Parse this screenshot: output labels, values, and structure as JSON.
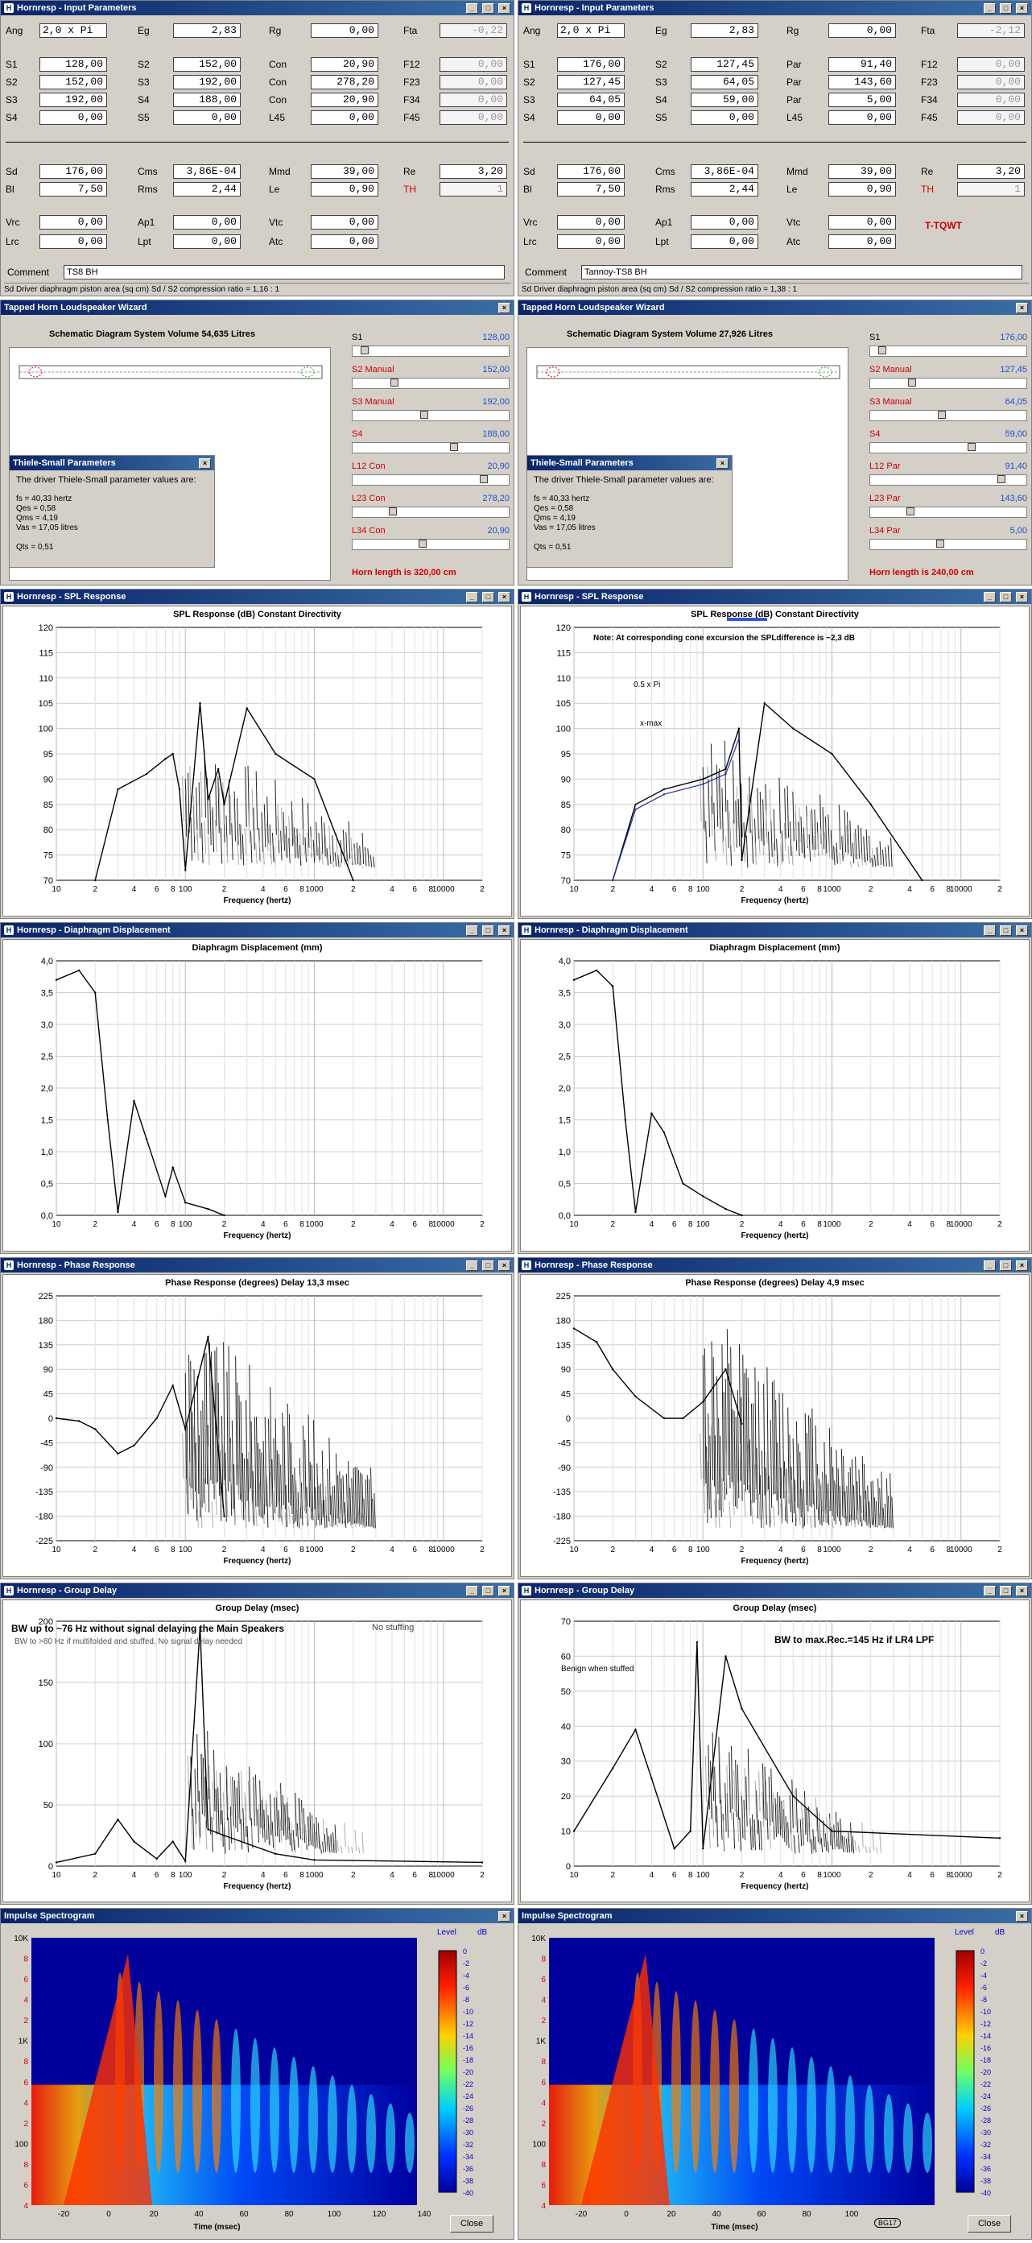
{
  "panels": [
    {
      "input": {
        "title": "Hornresp - Input Parameters",
        "ang": "2,0 x Pi",
        "eg": "2,83",
        "rg": "0,00",
        "fta": "-0,22",
        "s": [
          {
            "lab": "S1",
            "val": "128,00",
            "lab2": "S2",
            "val2": "152,00",
            "lab3": "Con",
            "val3": "20,90",
            "lab4": "F12",
            "val4": "0,00"
          },
          {
            "lab": "S2",
            "val": "152,00",
            "lab2": "S3",
            "val2": "192,00",
            "lab3": "Con",
            "val3": "278,20",
            "lab4": "F23",
            "val4": "0,00"
          },
          {
            "lab": "S3",
            "val": "192,00",
            "lab2": "S4",
            "val2": "188,00",
            "lab3": "Con",
            "val3": "20,90",
            "lab4": "F34",
            "val4": "0,00"
          },
          {
            "lab": "S4",
            "val": "0,00",
            "lab2": "S5",
            "val2": "0,00",
            "lab3": "L45",
            "val3": "0,00",
            "lab4": "F45",
            "val4": "0,00"
          }
        ],
        "sd": "176,00",
        "cms": "3,86E-04",
        "mmd": "39,00",
        "re": "3,20",
        "bl": "7,50",
        "rms": "2,44",
        "le": "0,90",
        "th": "1",
        "vrc": "0,00",
        "ap1": "0,00",
        "vtc": "0,00",
        "lrc": "0,00",
        "lpt": "0,00",
        "atc": "0,00",
        "tag": "",
        "comment": "TS8 BH",
        "status": "Sd  Driver diaphragm piston area  (sq cm)   Sd / S2 compression ratio = 1,16 : 1"
      },
      "wizard": {
        "title": "Tapped Horn Loudspeaker Wizard",
        "schematic": "Schematic Diagram   System Volume 54,635 Litres",
        "sliders": [
          {
            "lab": "S1",
            "val": "128,00",
            "red": false
          },
          {
            "lab": "S2  Manual",
            "val": "152,00",
            "red": true
          },
          {
            "lab": "S3  Manual",
            "val": "192,00",
            "red": true
          },
          {
            "lab": "S4",
            "val": "188,00",
            "red": true
          },
          {
            "lab": "L12  Con",
            "val": "20,90",
            "red": true
          },
          {
            "lab": "L23  Con",
            "val": "278,20",
            "red": true
          },
          {
            "lab": "L34  Con",
            "val": "20,90",
            "red": true
          }
        ],
        "horn_length": "Horn length is 320,00 cm",
        "ts_title": "Thiele-Small Parameters",
        "ts_intro": "The driver Thiele-Small parameter values are:",
        "ts_lines": [
          "fs = 40,33 hertz",
          "Qes = 0,58",
          "Qms = 4,19",
          "Vas = 17,05 litres",
          "",
          "Qts = 0,51"
        ]
      },
      "spl": {
        "title": "Hornresp - SPL Response",
        "chart": "SPL Response  (dB)    Constant Directivity",
        "note": "",
        "ann": []
      },
      "disp": {
        "title": "Hornresp - Diaphragm Displacement",
        "chart": "Diaphragm Displacement  (mm)"
      },
      "phase": {
        "title": "Hornresp - Phase Response",
        "chart": "Phase Response  (degrees)    Delay 13,3 msec"
      },
      "gd": {
        "title": "Hornresp - Group Delay",
        "chart": "Group Delay  (msec)",
        "note1": "BW up to ~76 Hz without signal delaying the Main Speakers",
        "note1b": "No stuffing",
        "note2": "BW to >80 Hz if multifolded and stuffed, No signal delay needed",
        "note3": ""
      },
      "spec": {
        "title": "Impulse Spectrogram",
        "level": "Level",
        "db": "dB",
        "xlabel": "Time  (msec)",
        "close": "Close",
        "badge": ""
      }
    },
    {
      "input": {
        "title": "Hornresp - Input Parameters",
        "ang": "2,0 x Pi",
        "eg": "2,83",
        "rg": "0,00",
        "fta": "-2,12",
        "s": [
          {
            "lab": "S1",
            "val": "176,00",
            "lab2": "S2",
            "val2": "127,45",
            "lab3": "Par",
            "val3": "91,40",
            "lab4": "F12",
            "val4": "0,00"
          },
          {
            "lab": "S2",
            "val": "127,45",
            "lab2": "S3",
            "val2": "64,05",
            "lab3": "Par",
            "val3": "143,60",
            "lab4": "F23",
            "val4": "0,00"
          },
          {
            "lab": "S3",
            "val": "64,05",
            "lab2": "S4",
            "val2": "59,00",
            "lab3": "Par",
            "val3": "5,00",
            "lab4": "F34",
            "val4": "0,00"
          },
          {
            "lab": "S4",
            "val": "0,00",
            "lab2": "S5",
            "val2": "0,00",
            "lab3": "L45",
            "val3": "0,00",
            "lab4": "F45",
            "val4": "0,00"
          }
        ],
        "sd": "176,00",
        "cms": "3,86E-04",
        "mmd": "39,00",
        "re": "3,20",
        "bl": "7,50",
        "rms": "2,44",
        "le": "0,90",
        "th": "1",
        "vrc": "0,00",
        "ap1": "0,00",
        "vtc": "0,00",
        "lrc": "0,00",
        "lpt": "0,00",
        "atc": "0,00",
        "tag": "T-TQWT",
        "comment": "Tannoy-TS8 BH",
        "status": "Sd  Driver diaphragm piston area  (sq cm)   Sd / S2 compression ratio = 1,38 : 1"
      },
      "wizard": {
        "title": "Tapped Horn Loudspeaker Wizard",
        "schematic": "Schematic Diagram   System Volume 27,926 Litres",
        "sliders": [
          {
            "lab": "S1",
            "val": "176,00",
            "red": false
          },
          {
            "lab": "S2  Manual",
            "val": "127,45",
            "red": true
          },
          {
            "lab": "S3  Manual",
            "val": "64,05",
            "red": true
          },
          {
            "lab": "S4",
            "val": "59,00",
            "red": true
          },
          {
            "lab": "L12  Par",
            "val": "91,40",
            "red": true
          },
          {
            "lab": "L23  Par",
            "val": "143,60",
            "red": true
          },
          {
            "lab": "L34  Par",
            "val": "5,00",
            "red": true
          }
        ],
        "horn_length": "Horn length is 240,00 cm",
        "ts_title": "Thiele-Small Parameters",
        "ts_intro": "The driver Thiele-Small parameter values are:",
        "ts_lines": [
          "fs = 40,33 hertz",
          "Qes = 0,58",
          "Qms = 4,19",
          "Vas = 17,05 litres",
          "",
          "Qts = 0,51"
        ]
      },
      "spl": {
        "title": "Hornresp - SPL Response",
        "chart": "SPL Response  (dB)    Constant Directivity",
        "note": "Note: At corresponding cone excursion the SPLdifference is ~2,3 dB",
        "ann": [
          "0.5 x Pi",
          "x-max"
        ]
      },
      "disp": {
        "title": "Hornresp - Diaphragm Displacement",
        "chart": "Diaphragm Displacement  (mm)"
      },
      "phase": {
        "title": "Hornresp - Phase Response",
        "chart": "Phase Response  (degrees)    Delay 4,9 msec"
      },
      "gd": {
        "title": "Hornresp - Group Delay",
        "chart": "Group Delay  (msec)",
        "note1": "BW to max.Rec.=145 Hz if LR4 LPF",
        "note1b": "",
        "note2": "",
        "note3": "Benign when stuffed"
      },
      "spec": {
        "title": "Impulse Spectrogram",
        "level": "Level",
        "db": "dB",
        "xlabel": "Time  (msec)",
        "close": "Close",
        "badge": "BG17"
      }
    }
  ],
  "freq_ticks": [
    "10",
    "2",
    "4",
    "6",
    "8",
    "100",
    "2",
    "4",
    "6",
    "8",
    "1000",
    "2",
    "4",
    "6",
    "8",
    "10000",
    "2"
  ],
  "freq_label": "Frequency  (hertz)",
  "spl_y": [
    "120",
    "115",
    "110",
    "105",
    "100",
    "95",
    "90",
    "85",
    "80",
    "75",
    "70"
  ],
  "disp_y": [
    "4,0",
    "3,5",
    "3,0",
    "2,5",
    "2,0",
    "1,5",
    "1,0",
    "0,5",
    "0,0"
  ],
  "phase_y": [
    "225",
    "180",
    "135",
    "90",
    "45",
    "0",
    "-45",
    "-90",
    "-135",
    "-180",
    "-225"
  ],
  "gd_y_left": [
    "200",
    "150",
    "100",
    "50",
    "0"
  ],
  "gd_y_right": [
    "70",
    "60",
    "50",
    "40",
    "30",
    "20",
    "10",
    "0"
  ],
  "spec_y": [
    "10K",
    "8",
    "6",
    "4",
    "2",
    "1K",
    "8",
    "6",
    "4",
    "2",
    "100",
    "8",
    "6",
    "4"
  ],
  "spec_x_left": [
    "-20",
    "0",
    "20",
    "40",
    "60",
    "80",
    "100",
    "120",
    "140"
  ],
  "spec_x_right": [
    "-20",
    "0",
    "20",
    "40",
    "60",
    "80",
    "100"
  ],
  "level_ticks": [
    "0",
    "-2",
    "-4",
    "-6",
    "-8",
    "-10",
    "-12",
    "-14",
    "-16",
    "-18",
    "-20",
    "-22",
    "-24",
    "-26",
    "-28",
    "-30",
    "-32",
    "-34",
    "-36",
    "-38",
    "-40"
  ],
  "chart_data": [
    {
      "type": "line",
      "title": "SPL Response  (dB)    Constant Directivity",
      "xlabel": "Frequency  (hertz)",
      "ylabel": "",
      "ylim": [
        70,
        120
      ],
      "xlim": [
        10,
        20000
      ],
      "xscale": "log",
      "grid": true,
      "series": [
        {
          "x": [
            20,
            30,
            50,
            70,
            80,
            90,
            100,
            130,
            150,
            180,
            200,
            300,
            500,
            1000,
            2000
          ],
          "y": [
            70,
            88,
            91,
            94,
            95,
            88,
            72,
            105,
            86,
            92,
            85,
            104,
            95,
            90,
            70
          ]
        }
      ]
    },
    {
      "type": "line",
      "title": "SPL Response  (dB)    Constant Directivity",
      "xlabel": "Frequency  (hertz)",
      "ylabel": "",
      "ylim": [
        70,
        120
      ],
      "xlim": [
        10,
        20000
      ],
      "xscale": "log",
      "grid": true,
      "series": [
        {
          "x": [
            20,
            30,
            50,
            100,
            150,
            190,
            200,
            300,
            500,
            1000,
            2000,
            5000
          ],
          "y": [
            70,
            85,
            88,
            90,
            92,
            100,
            74,
            105,
            100,
            95,
            85,
            70
          ]
        }
      ]
    },
    {
      "type": "line",
      "title": "Diaphragm Displacement  (mm)",
      "xlabel": "Frequency  (hertz)",
      "ylim": [
        0,
        4
      ],
      "xlim": [
        10,
        20000
      ],
      "xscale": "log",
      "grid": true,
      "series": [
        {
          "x": [
            10,
            15,
            20,
            25,
            30,
            40,
            50,
            70,
            80,
            100,
            150,
            200
          ],
          "y": [
            3.7,
            3.85,
            3.5,
            1.5,
            0.05,
            1.8,
            1.2,
            0.3,
            0.75,
            0.2,
            0.1,
            0.0
          ]
        }
      ]
    },
    {
      "type": "line",
      "title": "Diaphragm Displacement  (mm)",
      "xlabel": "Frequency  (hertz)",
      "ylim": [
        0,
        4
      ],
      "xlim": [
        10,
        20000
      ],
      "xscale": "log",
      "grid": true,
      "series": [
        {
          "x": [
            10,
            15,
            20,
            25,
            30,
            40,
            50,
            70,
            100,
            150,
            200
          ],
          "y": [
            3.7,
            3.85,
            3.6,
            1.5,
            0.05,
            1.6,
            1.3,
            0.5,
            0.3,
            0.1,
            0.0
          ]
        }
      ]
    },
    {
      "type": "line",
      "title": "Phase Response  (degrees)    Delay 13,3 msec",
      "xlabel": "Frequency  (hertz)",
      "ylim": [
        -225,
        225
      ],
      "xlim": [
        10,
        20000
      ],
      "xscale": "log",
      "grid": true,
      "series": [
        {
          "x": [
            10,
            15,
            20,
            30,
            40,
            60,
            80,
            100,
            150,
            200
          ],
          "y": [
            0,
            -5,
            -20,
            -65,
            -50,
            0,
            60,
            -20,
            150,
            -180
          ]
        }
      ]
    },
    {
      "type": "line",
      "title": "Phase Response  (degrees)    Delay 4,9 msec",
      "xlabel": "Frequency  (hertz)",
      "ylim": [
        -225,
        225
      ],
      "xlim": [
        10,
        20000
      ],
      "xscale": "log",
      "grid": true,
      "series": [
        {
          "x": [
            10,
            15,
            20,
            30,
            50,
            70,
            100,
            150,
            200
          ],
          "y": [
            165,
            140,
            90,
            40,
            0,
            0,
            30,
            90,
            -10
          ]
        }
      ]
    },
    {
      "type": "line",
      "title": "Group Delay  (msec)",
      "xlabel": "Frequency  (hertz)",
      "ylim": [
        0,
        200
      ],
      "xlim": [
        10,
        20000
      ],
      "xscale": "log",
      "grid": true,
      "series": [
        {
          "x": [
            10,
            20,
            30,
            40,
            60,
            80,
            100,
            130,
            150,
            200,
            500,
            1000,
            20000
          ],
          "y": [
            3,
            10,
            38,
            20,
            6,
            20,
            4,
            195,
            30,
            25,
            10,
            5,
            3
          ]
        }
      ]
    },
    {
      "type": "line",
      "title": "Group Delay  (msec)",
      "xlabel": "Frequency  (hertz)",
      "ylim": [
        0,
        70
      ],
      "xlim": [
        10,
        20000
      ],
      "xscale": "log",
      "grid": true,
      "series": [
        {
          "x": [
            10,
            20,
            30,
            40,
            60,
            80,
            90,
            100,
            150,
            200,
            500,
            1000,
            20000
          ],
          "y": [
            10,
            28,
            39,
            25,
            5,
            10,
            64,
            5,
            60,
            45,
            20,
            10,
            8
          ]
        }
      ]
    }
  ]
}
